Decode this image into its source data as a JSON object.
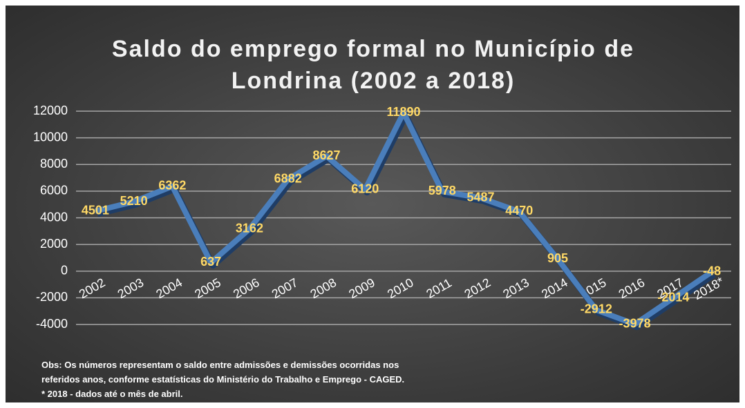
{
  "chart_data": {
    "type": "line",
    "title": "Saldo do emprego formal no Município de Londrina (2002 a 2018)",
    "categories": [
      "2002",
      "2003",
      "2004",
      "2005",
      "2006",
      "2007",
      "2008",
      "2009",
      "2010",
      "2011",
      "2012",
      "2013",
      "2014",
      "2015",
      "2016",
      "2017",
      "2018*"
    ],
    "series": [
      {
        "color": "#4a7ebb",
        "values": [
          4501,
          5210,
          6362,
          637,
          3162,
          6882,
          8627,
          6120,
          11890,
          5978,
          5487,
          4470,
          905,
          -2912,
          -3978,
          -2014,
          -48
        ]
      }
    ],
    "ylim": [
      -4000,
      12000
    ],
    "yticks": [
      -4000,
      -2000,
      0,
      2000,
      4000,
      6000,
      8000,
      10000,
      12000
    ],
    "grid": true,
    "label_color": "#ffd966",
    "notes": [
      "Obs: Os números representam o saldo entre admissões e demissões ocorridas nos",
      "referidos anos, conforme estatísticas do Ministério do Trabalho e Emprego - CAGED.",
      "* 2018 - dados até o mês de abril."
    ]
  }
}
